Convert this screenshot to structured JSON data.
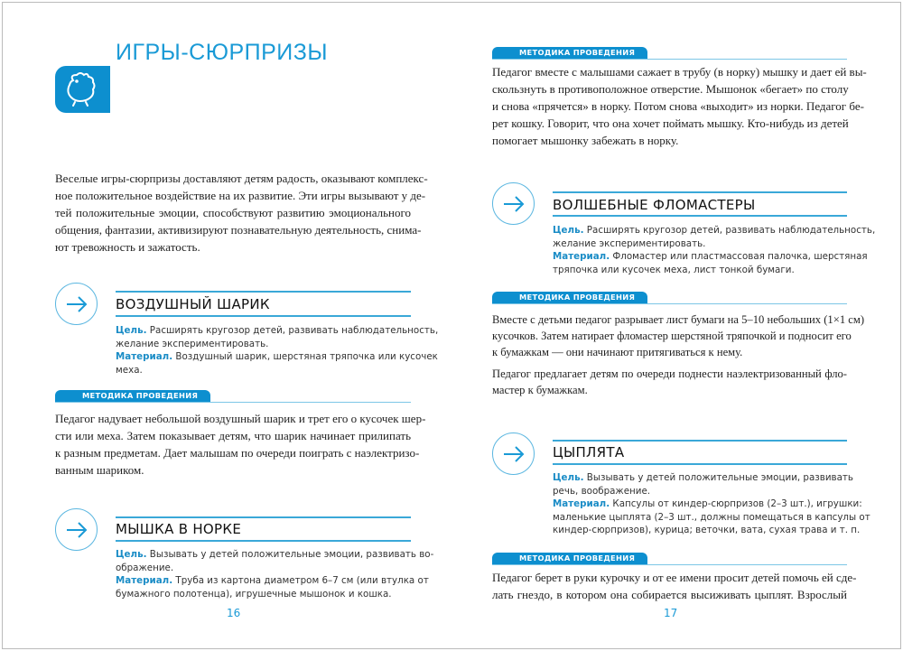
{
  "left_page": {
    "chapter_title": "ИГРЫ-СЮРПРИЗЫ",
    "chapter_icon": "chick-icon",
    "intro": [
      "Веселые игры-сюрпризы доставляют детям радость, оказывают комплекс-",
      "ное положительное воздействие на их развитие. Эти игры вызывают у де-",
      "тей положительные эмоции, способствуют развитию эмоционального",
      "общения, фантазии, активизируют познавательную деятельность, снима-",
      "ют тревожность и зажатость."
    ],
    "games": [
      {
        "title": "ВОЗДУШНЫЙ ШАРИК",
        "goal_label": "Цель.",
        "goal": [
          "Расширять кругозор детей, развивать наблюдательность,",
          "желание экспериментировать."
        ],
        "material_label": "Материал.",
        "material": [
          "Воздушный шарик, шерстяная тряпочка или кусочек",
          "меха."
        ],
        "method_label": "МЕТОДИКА ПРОВЕДЕНИЯ",
        "method": [
          "Педагог надувает небольшой воздушный шарик и трет его о кусочек шер-",
          "сти или меха. Затем показывает детям, что шарик начинает прилипать",
          "к разным предметам. Дает малышам по очереди поиграть с наэлектризо-",
          "ванным шариком."
        ]
      },
      {
        "title": "МЫШКА В НОРКЕ",
        "goal_label": "Цель.",
        "goal": [
          "Вызывать у детей положительные эмоции, развивать во-",
          "ображение."
        ],
        "material_label": "Материал.",
        "material": [
          "Труба из картона диаметром 6–7 см (или втулка от",
          "бумажного полотенца), игрушечные мышонок и кошка."
        ]
      }
    ],
    "page_number": "16"
  },
  "right_page": {
    "continued_method_label": "МЕТОДИКА ПРОВЕДЕНИЯ",
    "continued_method": [
      "Педагог вместе с малышами сажает в трубу (в норку) мышку и дает ей вы-",
      "скользнуть в противоположное отверстие. Мышонок «бегает» по столу",
      "и снова «прячется» в норку. Потом снова «выходит» из норки. Педагог бе-",
      "рет кошку. Говорит, что она хочет поймать мышку. Кто-нибудь из детей",
      "помогает мышонку забежать в норку."
    ],
    "games": [
      {
        "title": "ВОЛШЕБНЫЕ ФЛОМАСТЕРЫ",
        "goal_label": "Цель.",
        "goal": [
          "Расширять кругозор детей, развивать наблюдательность,",
          "желание экспериментировать."
        ],
        "material_label": "Материал.",
        "material": [
          "Фломастер или пластмассовая палочка, шерстяная",
          "тряпочка или кусочек меха, лист тонкой бумаги."
        ],
        "method_label": "МЕТОДИКА ПРОВЕДЕНИЯ",
        "method": [
          "Вместе с детьми педагог разрывает лист бумаги на 5–10 небольших (1×1 см)",
          "кусочков. Затем натирает фломастер шерстяной тряпочкой и подносит его",
          "к бумажкам — они начинают притягиваться к нему."
        ],
        "method2": [
          "Педагог предлагает детям по очереди поднести наэлектризованный фло-",
          "мастер к бумажкам."
        ]
      },
      {
        "title": "ЦЫПЛЯТА",
        "goal_label": "Цель.",
        "goal": [
          "Вызывать у детей положительные эмоции, развивать",
          "речь, воображение."
        ],
        "material_label": "Материал.",
        "material": [
          "Капсулы от киндер-сюрпризов (2–3 шт.), игрушки:",
          "маленькие цыплята (2–3 шт., должны помещаться в капсулы от",
          "киндер-сюрпризов), курица; веточки, вата, сухая трава и т. п."
        ],
        "method_label": "МЕТОДИКА ПРОВЕДЕНИЯ",
        "method": [
          "Педагог берет в руки курочку и от ее имени просит детей помочь ей сде-",
          "лать гнездо, в котором она собирается высиживать цыплят. Взрослый"
        ]
      }
    ],
    "page_number": "17"
  },
  "colors": {
    "accent": "#0d8fcf",
    "title": "#1a9ad6"
  }
}
